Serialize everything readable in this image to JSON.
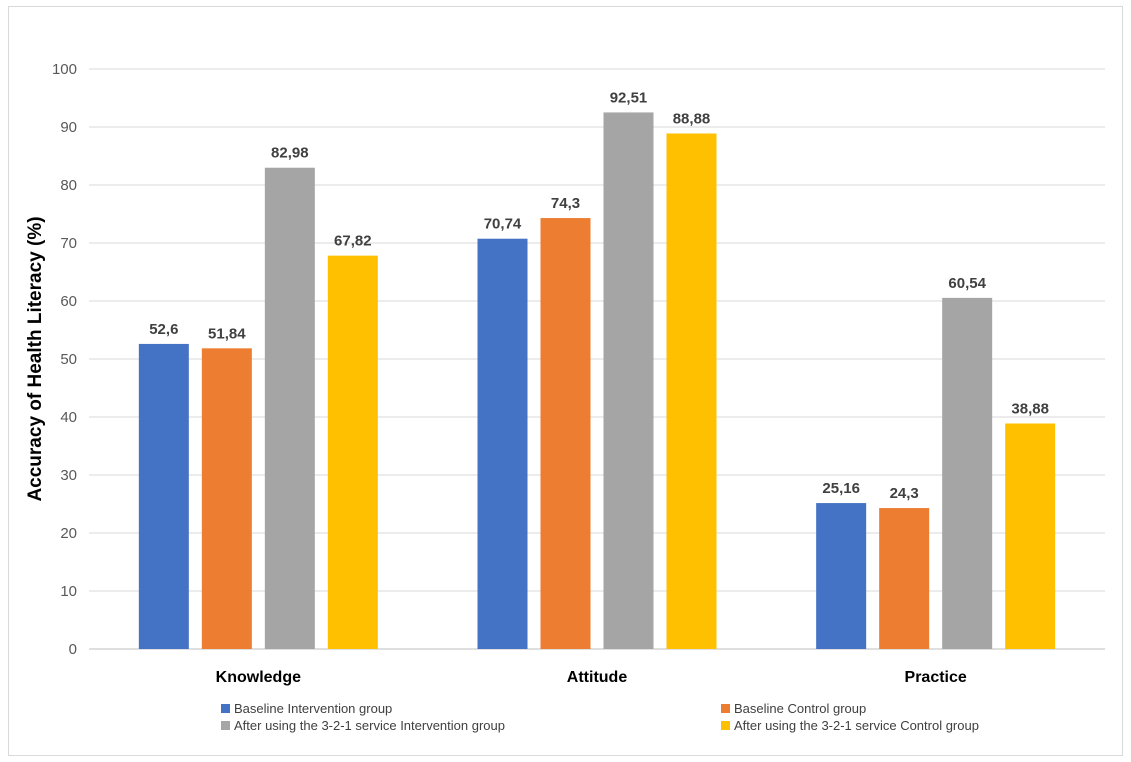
{
  "chart_data": {
    "type": "bar",
    "title": "",
    "xlabel": "",
    "ylabel": "Accuracy of Health Literacy (%)",
    "ylim": [
      0,
      100
    ],
    "yticks": [
      0,
      10,
      20,
      30,
      40,
      50,
      60,
      70,
      80,
      90,
      100
    ],
    "grid": "horizontal",
    "legend_position": "bottom",
    "categories": [
      "Knowledge",
      "Attitude",
      "Practice"
    ],
    "series": [
      {
        "name": "Baseline Intervention group",
        "color": "#4472C4",
        "values": [
          52.6,
          70.74,
          25.16
        ],
        "labels": [
          "52,6",
          "70,74",
          "25,16"
        ]
      },
      {
        "name": "Baseline Control group",
        "color": "#ED7D31",
        "values": [
          51.84,
          74.3,
          24.3
        ],
        "labels": [
          "51,84",
          "74,3",
          "24,3"
        ]
      },
      {
        "name": "After using the 3-2-1 service Intervention group",
        "color": "#A5A5A5",
        "values": [
          82.98,
          92.51,
          60.54
        ],
        "labels": [
          "82,98",
          "92,51",
          "60,54"
        ]
      },
      {
        "name": "After using the 3-2-1 service Control group",
        "color": "#FFC000",
        "values": [
          67.82,
          88.88,
          38.88
        ],
        "labels": [
          "67,82",
          "88,88",
          "38,88"
        ]
      }
    ]
  }
}
